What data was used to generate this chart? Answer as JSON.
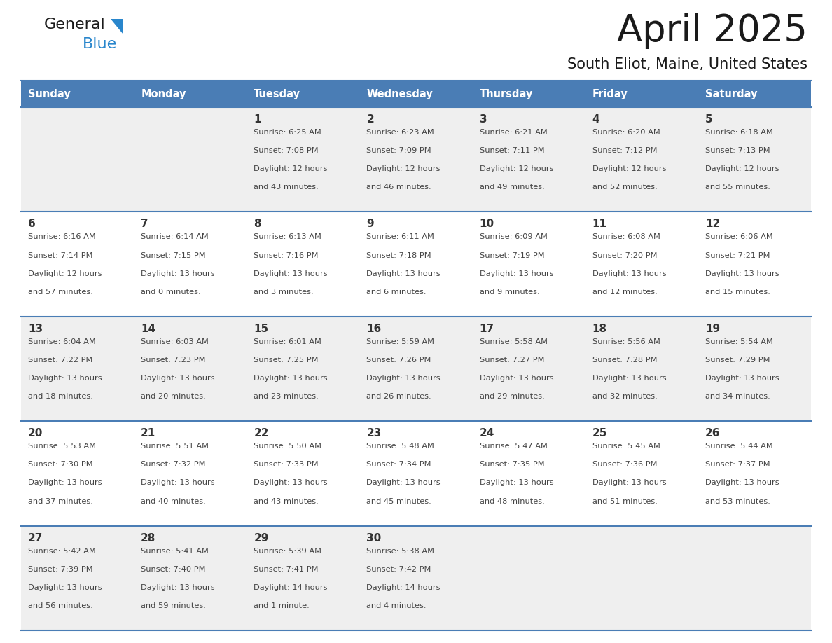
{
  "title": "April 2025",
  "subtitle": "South Eliot, Maine, United States",
  "header_bg_color": "#4A7DB5",
  "header_text_color": "#FFFFFF",
  "header_days": [
    "Sunday",
    "Monday",
    "Tuesday",
    "Wednesday",
    "Thursday",
    "Friday",
    "Saturday"
  ],
  "row_bg_colors": [
    "#EFEFEF",
    "#FFFFFF"
  ],
  "cell_border_color": "#4A7DB5",
  "title_color": "#1a1a1a",
  "subtitle_color": "#1a1a1a",
  "cell_text_color": "#444444",
  "date_text_color": "#333333",
  "days": [
    {
      "date": 1,
      "col": 2,
      "row": 0,
      "sunrise": "6:25 AM",
      "sunset": "7:08 PM",
      "daylight_line1": "Daylight: 12 hours",
      "daylight_line2": "and 43 minutes."
    },
    {
      "date": 2,
      "col": 3,
      "row": 0,
      "sunrise": "6:23 AM",
      "sunset": "7:09 PM",
      "daylight_line1": "Daylight: 12 hours",
      "daylight_line2": "and 46 minutes."
    },
    {
      "date": 3,
      "col": 4,
      "row": 0,
      "sunrise": "6:21 AM",
      "sunset": "7:11 PM",
      "daylight_line1": "Daylight: 12 hours",
      "daylight_line2": "and 49 minutes."
    },
    {
      "date": 4,
      "col": 5,
      "row": 0,
      "sunrise": "6:20 AM",
      "sunset": "7:12 PM",
      "daylight_line1": "Daylight: 12 hours",
      "daylight_line2": "and 52 minutes."
    },
    {
      "date": 5,
      "col": 6,
      "row": 0,
      "sunrise": "6:18 AM",
      "sunset": "7:13 PM",
      "daylight_line1": "Daylight: 12 hours",
      "daylight_line2": "and 55 minutes."
    },
    {
      "date": 6,
      "col": 0,
      "row": 1,
      "sunrise": "6:16 AM",
      "sunset": "7:14 PM",
      "daylight_line1": "Daylight: 12 hours",
      "daylight_line2": "and 57 minutes."
    },
    {
      "date": 7,
      "col": 1,
      "row": 1,
      "sunrise": "6:14 AM",
      "sunset": "7:15 PM",
      "daylight_line1": "Daylight: 13 hours",
      "daylight_line2": "and 0 minutes."
    },
    {
      "date": 8,
      "col": 2,
      "row": 1,
      "sunrise": "6:13 AM",
      "sunset": "7:16 PM",
      "daylight_line1": "Daylight: 13 hours",
      "daylight_line2": "and 3 minutes."
    },
    {
      "date": 9,
      "col": 3,
      "row": 1,
      "sunrise": "6:11 AM",
      "sunset": "7:18 PM",
      "daylight_line1": "Daylight: 13 hours",
      "daylight_line2": "and 6 minutes."
    },
    {
      "date": 10,
      "col": 4,
      "row": 1,
      "sunrise": "6:09 AM",
      "sunset": "7:19 PM",
      "daylight_line1": "Daylight: 13 hours",
      "daylight_line2": "and 9 minutes."
    },
    {
      "date": 11,
      "col": 5,
      "row": 1,
      "sunrise": "6:08 AM",
      "sunset": "7:20 PM",
      "daylight_line1": "Daylight: 13 hours",
      "daylight_line2": "and 12 minutes."
    },
    {
      "date": 12,
      "col": 6,
      "row": 1,
      "sunrise": "6:06 AM",
      "sunset": "7:21 PM",
      "daylight_line1": "Daylight: 13 hours",
      "daylight_line2": "and 15 minutes."
    },
    {
      "date": 13,
      "col": 0,
      "row": 2,
      "sunrise": "6:04 AM",
      "sunset": "7:22 PM",
      "daylight_line1": "Daylight: 13 hours",
      "daylight_line2": "and 18 minutes."
    },
    {
      "date": 14,
      "col": 1,
      "row": 2,
      "sunrise": "6:03 AM",
      "sunset": "7:23 PM",
      "daylight_line1": "Daylight: 13 hours",
      "daylight_line2": "and 20 minutes."
    },
    {
      "date": 15,
      "col": 2,
      "row": 2,
      "sunrise": "6:01 AM",
      "sunset": "7:25 PM",
      "daylight_line1": "Daylight: 13 hours",
      "daylight_line2": "and 23 minutes."
    },
    {
      "date": 16,
      "col": 3,
      "row": 2,
      "sunrise": "5:59 AM",
      "sunset": "7:26 PM",
      "daylight_line1": "Daylight: 13 hours",
      "daylight_line2": "and 26 minutes."
    },
    {
      "date": 17,
      "col": 4,
      "row": 2,
      "sunrise": "5:58 AM",
      "sunset": "7:27 PM",
      "daylight_line1": "Daylight: 13 hours",
      "daylight_line2": "and 29 minutes."
    },
    {
      "date": 18,
      "col": 5,
      "row": 2,
      "sunrise": "5:56 AM",
      "sunset": "7:28 PM",
      "daylight_line1": "Daylight: 13 hours",
      "daylight_line2": "and 32 minutes."
    },
    {
      "date": 19,
      "col": 6,
      "row": 2,
      "sunrise": "5:54 AM",
      "sunset": "7:29 PM",
      "daylight_line1": "Daylight: 13 hours",
      "daylight_line2": "and 34 minutes."
    },
    {
      "date": 20,
      "col": 0,
      "row": 3,
      "sunrise": "5:53 AM",
      "sunset": "7:30 PM",
      "daylight_line1": "Daylight: 13 hours",
      "daylight_line2": "and 37 minutes."
    },
    {
      "date": 21,
      "col": 1,
      "row": 3,
      "sunrise": "5:51 AM",
      "sunset": "7:32 PM",
      "daylight_line1": "Daylight: 13 hours",
      "daylight_line2": "and 40 minutes."
    },
    {
      "date": 22,
      "col": 2,
      "row": 3,
      "sunrise": "5:50 AM",
      "sunset": "7:33 PM",
      "daylight_line1": "Daylight: 13 hours",
      "daylight_line2": "and 43 minutes."
    },
    {
      "date": 23,
      "col": 3,
      "row": 3,
      "sunrise": "5:48 AM",
      "sunset": "7:34 PM",
      "daylight_line1": "Daylight: 13 hours",
      "daylight_line2": "and 45 minutes."
    },
    {
      "date": 24,
      "col": 4,
      "row": 3,
      "sunrise": "5:47 AM",
      "sunset": "7:35 PM",
      "daylight_line1": "Daylight: 13 hours",
      "daylight_line2": "and 48 minutes."
    },
    {
      "date": 25,
      "col": 5,
      "row": 3,
      "sunrise": "5:45 AM",
      "sunset": "7:36 PM",
      "daylight_line1": "Daylight: 13 hours",
      "daylight_line2": "and 51 minutes."
    },
    {
      "date": 26,
      "col": 6,
      "row": 3,
      "sunrise": "5:44 AM",
      "sunset": "7:37 PM",
      "daylight_line1": "Daylight: 13 hours",
      "daylight_line2": "and 53 minutes."
    },
    {
      "date": 27,
      "col": 0,
      "row": 4,
      "sunrise": "5:42 AM",
      "sunset": "7:39 PM",
      "daylight_line1": "Daylight: 13 hours",
      "daylight_line2": "and 56 minutes."
    },
    {
      "date": 28,
      "col": 1,
      "row": 4,
      "sunrise": "5:41 AM",
      "sunset": "7:40 PM",
      "daylight_line1": "Daylight: 13 hours",
      "daylight_line2": "and 59 minutes."
    },
    {
      "date": 29,
      "col": 2,
      "row": 4,
      "sunrise": "5:39 AM",
      "sunset": "7:41 PM",
      "daylight_line1": "Daylight: 14 hours",
      "daylight_line2": "and 1 minute."
    },
    {
      "date": 30,
      "col": 3,
      "row": 4,
      "sunrise": "5:38 AM",
      "sunset": "7:42 PM",
      "daylight_line1": "Daylight: 14 hours",
      "daylight_line2": "and 4 minutes."
    }
  ],
  "num_rows": 5,
  "num_cols": 7,
  "fig_width": 11.88,
  "fig_height": 9.18,
  "dpi": 100
}
